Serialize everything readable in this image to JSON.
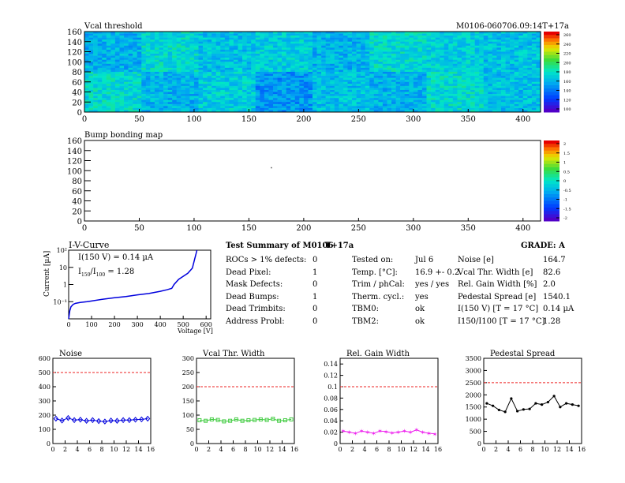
{
  "header": {
    "map1_title": "Vcal threshold",
    "module_id": "M0106-060706.09:14T+17a",
    "map2_title": "Bump bonding map"
  },
  "heatmaps": {
    "x_ticks": [
      "0",
      "50",
      "100",
      "150",
      "200",
      "250",
      "300",
      "350",
      "400"
    ],
    "y_ticks": [
      "0",
      "20",
      "40",
      "60",
      "80",
      "100",
      "120",
      "140",
      "160"
    ],
    "scale1_labels": [
      "260",
      "240",
      "220",
      "200",
      "180",
      "160",
      "140",
      "120",
      "100"
    ],
    "scale2_labels": [
      "2",
      "1.5",
      "1",
      "0.5",
      "0",
      "-0.5",
      "-1",
      "-1.5",
      "-2"
    ]
  },
  "iv": {
    "title": "I-V-Curve",
    "ylabel": "Current [µA]",
    "xlabel": "Voltage [V]",
    "ann1": "I(150 V) = 0.14 µA",
    "ann2": "I150/I100 = 1.28",
    "y_ticks": [
      "10²",
      "10",
      "1",
      "10⁻¹"
    ],
    "x_ticks": [
      "0",
      "100",
      "200",
      "300",
      "400",
      "500",
      "600"
    ]
  },
  "summary": {
    "title": "Test Summary of M0106",
    "tag": "T+17a",
    "grade": "GRADE:  A",
    "defects": [
      {
        "label": "ROCs > 1% defects:",
        "value": "0"
      },
      {
        "label": "Dead Pixel:",
        "value": "1"
      },
      {
        "label": "Mask Defects:",
        "value": "0"
      },
      {
        "label": "Dead Bumps:",
        "value": "1"
      },
      {
        "label": "Dead Trimbits:",
        "value": "0"
      },
      {
        "label": "Address Probl:",
        "value": "0"
      }
    ],
    "tests": [
      {
        "label": "Tested on:",
        "value": "Jul 6"
      },
      {
        "label": "Temp. [°C]:",
        "value": "16.9 +- 0.2"
      },
      {
        "label": "Trim / phCal:",
        "value": "yes / yes"
      },
      {
        "label": "Therm. cycl.:",
        "value": "yes"
      },
      {
        "label": "TBM0:",
        "value": "ok"
      },
      {
        "label": "TBM2:",
        "value": "ok"
      }
    ],
    "results": [
      {
        "label": "Noise [e]",
        "value": "164.7"
      },
      {
        "label": "Vcal Thr. Width [e]",
        "value": "82.6"
      },
      {
        "label": "Rel. Gain Width [%]",
        "value": "2.0"
      },
      {
        "label": "Pedestal Spread [e]",
        "value": "1540.1"
      },
      {
        "label": "I(150 V) [T = 17 °C]",
        "value": "0.14 µA"
      },
      {
        "label": "I150/I100   [T = 17 °C]",
        "value": "1.28"
      }
    ]
  },
  "chart_data": [
    {
      "type": "heatmap",
      "title": "Vcal threshold",
      "xlim": [
        0,
        416
      ],
      "ylim": [
        0,
        160
      ],
      "zlim": [
        100,
        260
      ],
      "roc_mean_values": [
        [
          160,
          175,
          165,
          170,
          160,
          175,
          170,
          165
        ],
        [
          175,
          160,
          170,
          150,
          165,
          160,
          175,
          165
        ]
      ]
    },
    {
      "type": "heatmap",
      "title": "Bump bonding map",
      "xlim": [
        0,
        416
      ],
      "ylim": [
        0,
        160
      ],
      "zlim": [
        -2,
        2
      ],
      "dead_bumps": [
        {
          "x": 170,
          "y": 107
        }
      ]
    },
    {
      "type": "line",
      "title": "I-V-Curve",
      "xlabel": "Voltage [V]",
      "ylabel": "Current [µA]",
      "yscale": "log",
      "xlim": [
        0,
        620
      ],
      "ylim": [
        0.01,
        100
      ],
      "x": [
        0,
        5,
        10,
        20,
        30,
        50,
        80,
        100,
        150,
        200,
        250,
        300,
        350,
        400,
        430,
        450,
        460,
        480,
        500,
        520,
        540,
        550,
        560
      ],
      "y": [
        0.01,
        0.03,
        0.05,
        0.07,
        0.08,
        0.09,
        0.1,
        0.11,
        0.14,
        0.17,
        0.2,
        0.25,
        0.3,
        0.4,
        0.5,
        0.6,
        1.0,
        2.0,
        3.0,
        4.5,
        9.0,
        30,
        100
      ]
    },
    {
      "type": "line",
      "title": "Noise",
      "xlim": [
        0,
        16
      ],
      "ylim": [
        0,
        600
      ],
      "threshold": 500,
      "x": [
        0,
        1,
        2,
        3,
        4,
        5,
        6,
        7,
        8,
        9,
        10,
        11,
        12,
        13,
        14,
        15
      ],
      "y": [
        175,
        162,
        180,
        165,
        168,
        160,
        165,
        158,
        155,
        162,
        160,
        165,
        165,
        168,
        170,
        175
      ]
    },
    {
      "type": "line",
      "title": "Vcal Thr. Width",
      "xlim": [
        0,
        16
      ],
      "ylim": [
        0,
        300
      ],
      "threshold": 200,
      "x": [
        0,
        1,
        2,
        3,
        4,
        5,
        6,
        7,
        8,
        9,
        10,
        11,
        12,
        13,
        14,
        15
      ],
      "y": [
        82,
        80,
        85,
        83,
        78,
        80,
        85,
        80,
        82,
        83,
        85,
        83,
        87,
        80,
        82,
        85
      ]
    },
    {
      "type": "line",
      "title": "Rel. Gain Width",
      "xlim": [
        0,
        16
      ],
      "ylim": [
        0,
        0.15
      ],
      "threshold": 0.1,
      "x": [
        0,
        1,
        2,
        3,
        4,
        5,
        6,
        7,
        8,
        9,
        10,
        11,
        12,
        13,
        14,
        15
      ],
      "y": [
        0.022,
        0.02,
        0.018,
        0.022,
        0.02,
        0.018,
        0.022,
        0.021,
        0.019,
        0.02,
        0.022,
        0.02,
        0.024,
        0.02,
        0.018,
        0.017
      ]
    },
    {
      "type": "line",
      "title": "Pedestal Spread",
      "xlim": [
        0,
        16
      ],
      "ylim": [
        0,
        3500
      ],
      "threshold": 2500,
      "x": [
        0,
        1,
        2,
        3,
        4,
        5,
        6,
        7,
        8,
        9,
        10,
        11,
        12,
        13,
        14,
        15
      ],
      "y": [
        1650,
        1550,
        1380,
        1300,
        1850,
        1330,
        1400,
        1420,
        1650,
        1600,
        1700,
        1950,
        1500,
        1650,
        1600,
        1550
      ]
    }
  ],
  "small_axes": {
    "x_ticks": [
      "0",
      "2",
      "4",
      "6",
      "8",
      "10",
      "12",
      "14",
      "16"
    ],
    "noise_y": [
      "0",
      "100",
      "200",
      "300",
      "400",
      "500",
      "600"
    ],
    "vcal_y": [
      "0",
      "50",
      "100",
      "150",
      "200",
      "250",
      "300"
    ],
    "gain_y": [
      "0",
      "0.02",
      "0.04",
      "0.06",
      "0.08",
      "0.1",
      "0.12",
      "0.14"
    ],
    "ped_y": [
      "0",
      "500",
      "1000",
      "1500",
      "2000",
      "2500",
      "3000",
      "3500"
    ]
  },
  "colors": {
    "line_blue": "#0000dd",
    "line_green": "#44cc44",
    "line_magenta": "#ee22ee",
    "line_black": "#000000",
    "threshold_red": "#ee2222"
  }
}
